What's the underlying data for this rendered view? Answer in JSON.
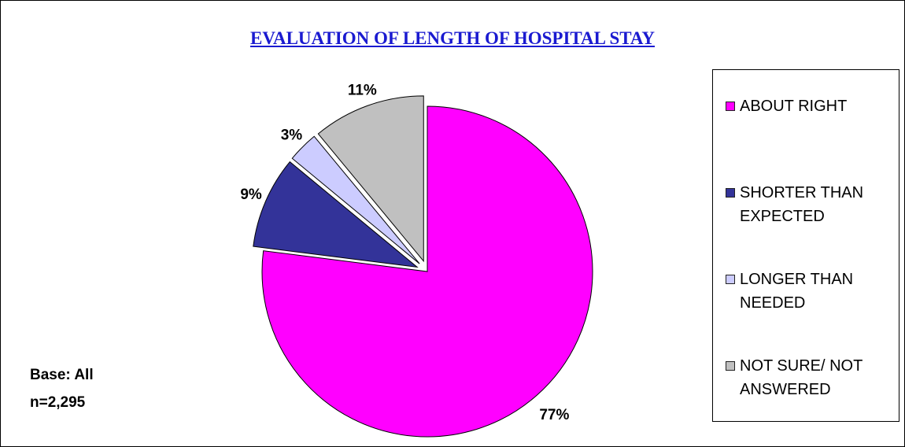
{
  "chart_data": {
    "type": "pie",
    "title": "EVALUATION OF LENGTH OF HOSPITAL STAY",
    "categories": [
      "ABOUT RIGHT",
      "SHORTER THAN EXPECTED",
      "LONGER THAN NEEDED",
      "NOT SURE/ NOT ANSWERED"
    ],
    "values": [
      77,
      9,
      3,
      11
    ],
    "value_labels": [
      "77%",
      "9%",
      "3%",
      "11%"
    ],
    "colors": [
      "#ff00ff",
      "#333399",
      "#ccccff",
      "#c0c0c0"
    ],
    "annotations": [
      "Base: All",
      "n=2,295"
    ],
    "legend": "right"
  }
}
